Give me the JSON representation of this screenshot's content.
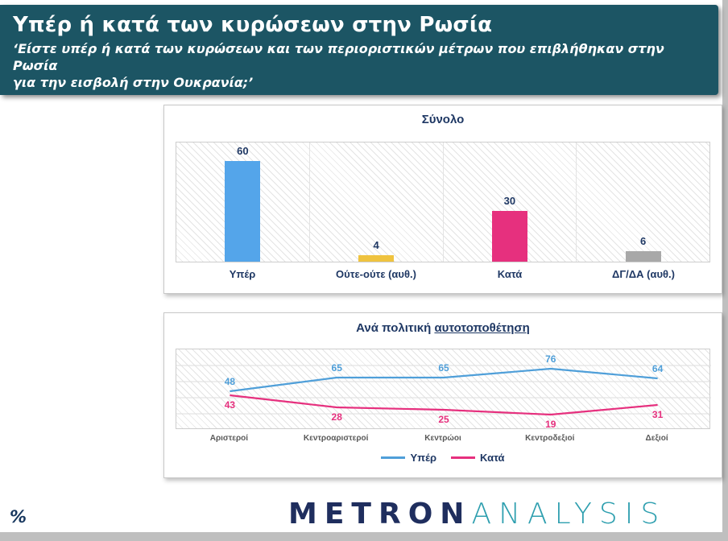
{
  "slide": {
    "title": "Υπέρ ή κατά των κυρώσεων στην Ρωσία",
    "subtitle_line1": "‘Είστε υπέρ ή κατά των κυρώσεων και των περιοριστικών μέτρων που επιβλήθηκαν στην Ρωσία",
    "subtitle_line2": "για την εισβολή στην Ουκρανία;’",
    "percent_sign": "%"
  },
  "colors": {
    "header_bg": "#1C5564",
    "text_navy": "#1F3864",
    "logo_navy": "#1F2E5E",
    "logo_teal": "#2E9FAF",
    "strip_gray": "#BFBFBF"
  },
  "chart_data": [
    {
      "type": "bar",
      "title": "Σύνολο",
      "categories": [
        "Υπέρ",
        "Ούτε-ούτε (αυθ.)",
        "Κατά",
        "ΔΓ/ΔΑ (αυθ.)"
      ],
      "values": [
        60,
        4,
        30,
        6
      ],
      "bar_colors": [
        "#54A5EA",
        "#EFC33F",
        "#E6307E",
        "#A8A8A8"
      ],
      "ylim": [
        0,
        70
      ],
      "grid": "vertical-separators",
      "xlabel": "",
      "ylabel": ""
    },
    {
      "type": "line",
      "title_prefix": "Ανά πολιτική ",
      "title_underline": "αυτοτοποθέτηση",
      "categories": [
        "Αριστεροί",
        "Κεντροαριστεροί",
        "Κεντρώοι",
        "Κεντροδεξιοί",
        "Δεξιοί"
      ],
      "series": [
        {
          "name": "Υπέρ",
          "values": [
            48,
            65,
            65,
            76,
            64
          ],
          "color": "#4F9FD9"
        },
        {
          "name": "Κατά",
          "values": [
            43,
            28,
            25,
            19,
            31
          ],
          "color": "#E6307E"
        }
      ],
      "ylim": [
        0,
        100
      ],
      "grid": "horizontal",
      "legend_position": "bottom"
    }
  ],
  "logo": {
    "part1": "METRON",
    "part2": "ANALYSIS"
  }
}
